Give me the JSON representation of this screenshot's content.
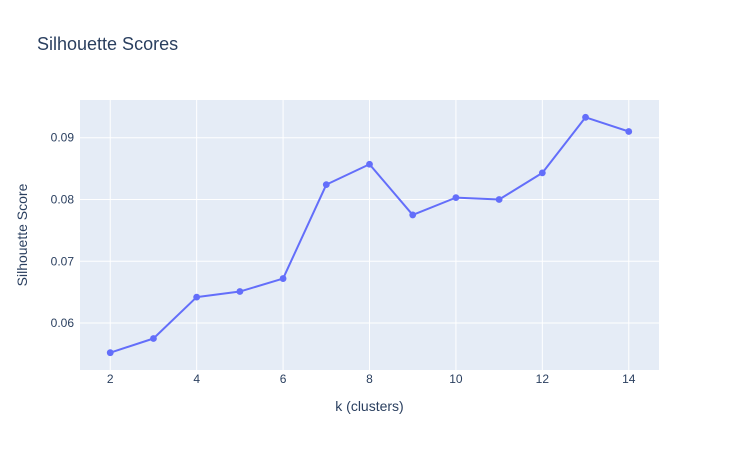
{
  "chart_data": {
    "type": "line",
    "title": "Silhouette Scores",
    "xlabel": "k (clusters)",
    "ylabel": "Silhouette Score",
    "x": [
      2,
      3,
      4,
      5,
      6,
      7,
      8,
      9,
      10,
      11,
      12,
      13,
      14
    ],
    "series": [
      {
        "values": [
          0.0552,
          0.0575,
          0.0642,
          0.0651,
          0.0672,
          0.0824,
          0.0857,
          0.0775,
          0.0803,
          0.08,
          0.0843,
          0.0933,
          0.091
        ]
      }
    ],
    "xlim": [
      1.3,
      14.7
    ],
    "ylim": [
      0.0524,
      0.0961
    ],
    "x_ticks": [
      2,
      4,
      6,
      8,
      10,
      12,
      14
    ],
    "x_tick_labels": [
      "2",
      "4",
      "6",
      "8",
      "10",
      "12",
      "14"
    ],
    "y_ticks": [
      0.06,
      0.07,
      0.08,
      0.09
    ],
    "y_tick_labels": [
      "0.06",
      "0.07",
      "0.08",
      "0.09"
    ],
    "grid": true,
    "legend": "none",
    "colors": {
      "line": "#636efa",
      "plot_bg": "#e5ecf6",
      "grid": "#ffffff",
      "text": "#2a3f5f"
    }
  }
}
